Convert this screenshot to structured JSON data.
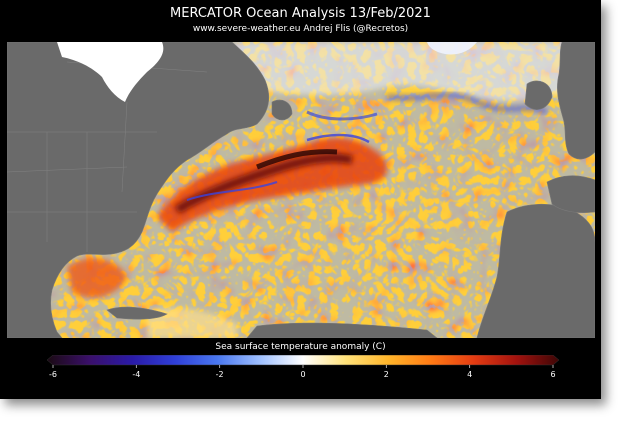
{
  "header": {
    "title": "MERCATOR Ocean Analysis  13/Feb/2021",
    "subtitle": "www.severe-weather.eu   Andrej Flis (@Recretos)"
  },
  "colorbar": {
    "label": "Sea surface temperature anomaly (C)",
    "min": -6,
    "max": 6,
    "ticks": [
      {
        "value": -6,
        "label": "-6"
      },
      {
        "value": -4,
        "label": "-4"
      },
      {
        "value": -2,
        "label": "-2"
      },
      {
        "value": 0,
        "label": "0"
      },
      {
        "value": 2,
        "label": "2"
      },
      {
        "value": 4,
        "label": "4"
      },
      {
        "value": 6,
        "label": "6"
      }
    ],
    "stops": [
      {
        "value": -6,
        "color": "#1a0a12"
      },
      {
        "value": -5,
        "color": "#3a0f6a"
      },
      {
        "value": -4,
        "color": "#2a1aa8"
      },
      {
        "value": -3,
        "color": "#2f3fd8"
      },
      {
        "value": -2,
        "color": "#4a78f0"
      },
      {
        "value": -1,
        "color": "#9fc0ff"
      },
      {
        "value": 0,
        "color": "#ffffff"
      },
      {
        "value": 1,
        "color": "#ffe27a"
      },
      {
        "value": 2,
        "color": "#ffb52a"
      },
      {
        "value": 3,
        "color": "#ff7a14"
      },
      {
        "value": 4,
        "color": "#e43c12"
      },
      {
        "value": 5,
        "color": "#a3120e"
      },
      {
        "value": 6,
        "color": "#3d0606"
      }
    ]
  },
  "colors": {
    "land": "#6a6a6a",
    "ice": "#ffffff",
    "background": "#000000"
  }
}
